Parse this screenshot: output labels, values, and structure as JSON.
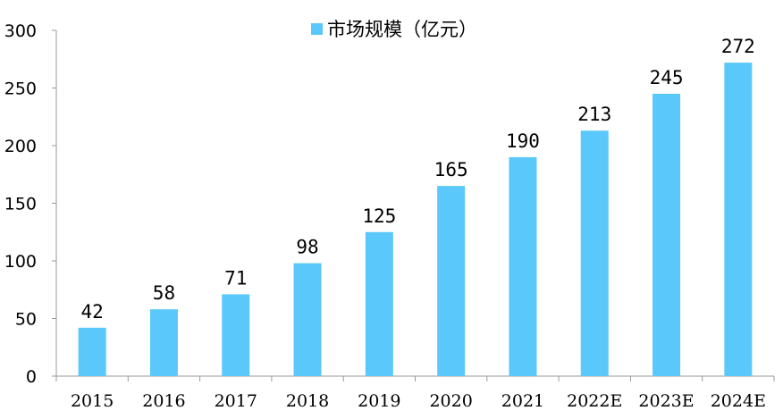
{
  "chart_data": {
    "type": "bar",
    "categories": [
      "2015",
      "2016",
      "2017",
      "2018",
      "2019",
      "2020",
      "2021",
      "2022E",
      "2023E",
      "2024E"
    ],
    "series": [
      {
        "name": "市场规模（亿元）",
        "values": [
          42,
          58,
          71,
          98,
          125,
          165,
          190,
          213,
          245,
          272
        ]
      }
    ],
    "ylim": [
      0,
      300
    ],
    "yticks": [
      0,
      50,
      100,
      150,
      200,
      250,
      300
    ],
    "legend_position": "top-center",
    "grid": false,
    "bar_color": "#5AC8FA",
    "axis_color": "#999999"
  }
}
